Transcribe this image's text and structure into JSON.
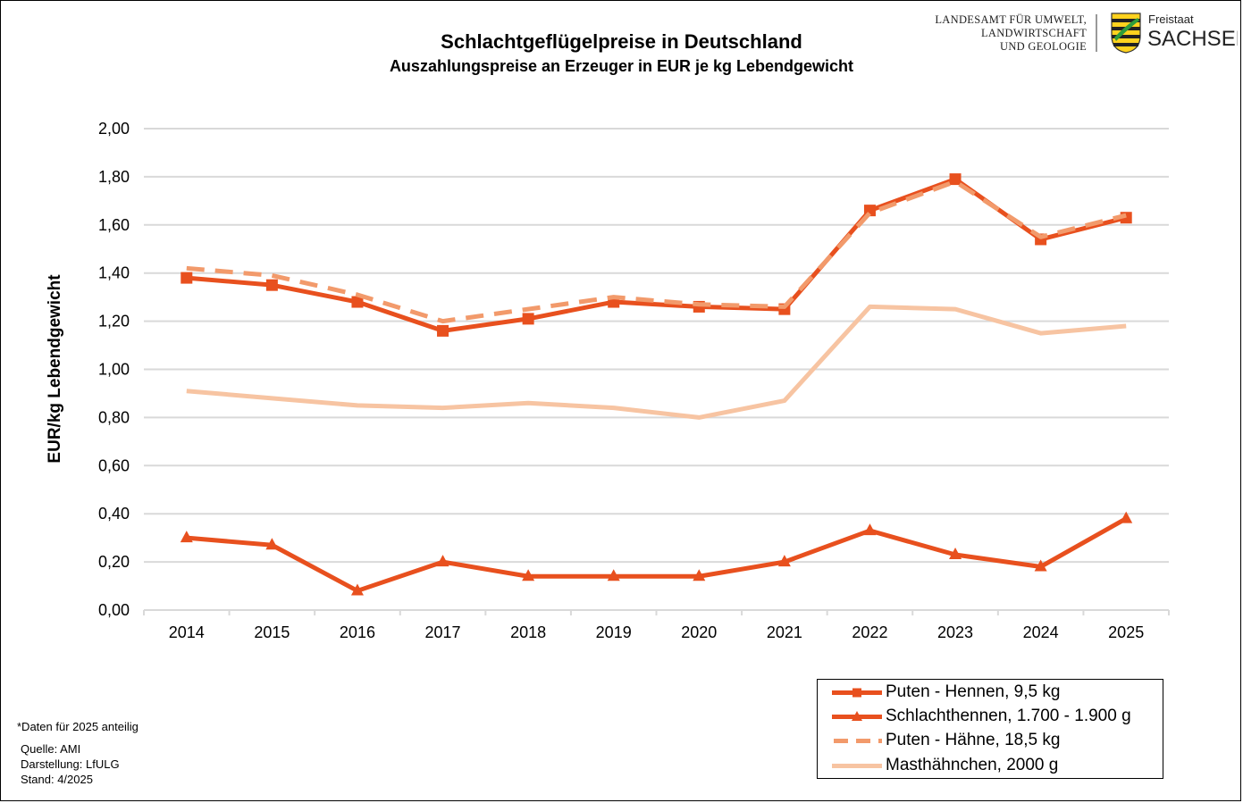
{
  "header": {
    "title": "Schlachtgeflügelpreise in Deutschland",
    "subtitle": "Auszahlungspreise an Erzeuger in EUR je kg Lebendgewicht"
  },
  "logo": {
    "org_lines": [
      "LANDESAMT FÜR UMWELT,",
      "LANDWIRTSCHAFT",
      "UND GEOLOGIE"
    ],
    "state_small": "Freistaat",
    "state_big": "SACHSEN",
    "emblem": "coat-of-arms-icon"
  },
  "chart_data": {
    "type": "line",
    "title": "Schlachtgeflügelpreise in Deutschland",
    "subtitle": "Auszahlungspreise an Erzeuger in EUR je kg Lebendgewicht",
    "xlabel": "",
    "ylabel": "EUR/kg Lebendgewicht",
    "ylim": [
      0,
      2.0
    ],
    "ytick_step": 0.2,
    "y_tick_labels": [
      "0,00",
      "0,20",
      "0,40",
      "0,60",
      "0,80",
      "1,00",
      "1,20",
      "1,40",
      "1,60",
      "1,80",
      "2,00"
    ],
    "grid": "horizontal",
    "legend_position": "bottom-right",
    "categories": [
      "2014",
      "2015",
      "2016",
      "2017",
      "2018",
      "2019",
      "2020",
      "2021",
      "2022",
      "2023",
      "2024",
      "2025"
    ],
    "series": [
      {
        "name": "Puten - Hennen, 9,5 kg",
        "color": "#e8501e",
        "line": "solid",
        "marker": "square",
        "values": [
          1.38,
          1.35,
          1.28,
          1.16,
          1.21,
          1.28,
          1.26,
          1.25,
          1.66,
          1.79,
          1.54,
          1.63
        ]
      },
      {
        "name": "Schlachthennen, 1.700 - 1.900 g",
        "color": "#e8501e",
        "line": "solid",
        "marker": "triangle",
        "values": [
          0.3,
          0.27,
          0.08,
          0.2,
          0.14,
          0.14,
          0.14,
          0.2,
          0.33,
          0.23,
          0.18,
          0.38
        ]
      },
      {
        "name": "Puten - Hähne, 18,5 kg",
        "color": "#f29a6b",
        "line": "dashed",
        "marker": "none",
        "values": [
          1.42,
          1.39,
          1.31,
          1.2,
          1.25,
          1.3,
          1.27,
          1.26,
          1.65,
          1.78,
          1.55,
          1.64
        ]
      },
      {
        "name": "Masthähnchen, 2000 g",
        "color": "#f7c4a2",
        "line": "solid",
        "marker": "none",
        "values": [
          0.91,
          0.88,
          0.85,
          0.84,
          0.86,
          0.84,
          0.8,
          0.87,
          1.26,
          1.25,
          1.15,
          1.18
        ]
      }
    ]
  },
  "footer": {
    "footnote": "*Daten für 2025 anteilig",
    "source": "Quelle:  AMI",
    "credit": "Darstellung:  LfULG",
    "date": "Stand:  4/2025"
  }
}
